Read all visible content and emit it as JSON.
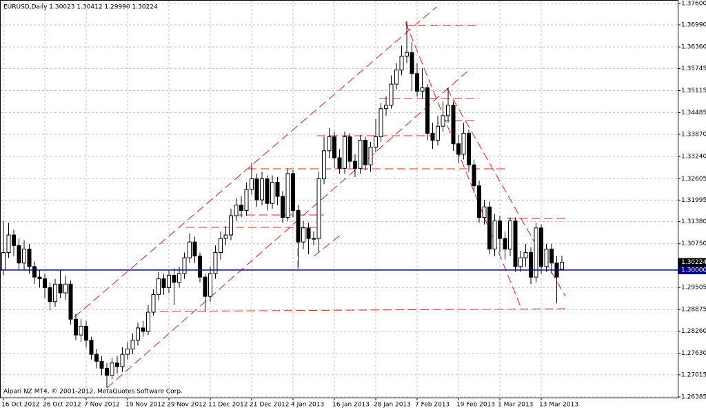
{
  "chart_data": {
    "type": "candlestick",
    "title": "EURUSD,Daily  1.30023 1.30412 1.29990 1.30224",
    "footer": "Alpari NZ MT4, © 2001-2012, MetaQuotes Software Corp.",
    "categories": [
      "16 Oct 2012",
      null,
      null,
      null,
      null,
      null,
      null,
      null,
      "26 Oct 2012",
      null,
      null,
      null,
      null,
      null,
      null,
      null,
      "7 Nov 2012",
      null,
      null,
      null,
      null,
      null,
      null,
      null,
      "19 Nov 2012",
      null,
      null,
      null,
      null,
      null,
      null,
      null,
      "29 Nov 2012",
      null,
      null,
      null,
      null,
      null,
      null,
      null,
      "11 Dec 2012",
      null,
      null,
      null,
      null,
      null,
      null,
      null,
      "21 Dec 2012",
      null,
      null,
      null,
      null,
      null,
      null,
      null,
      "4 Jan 2013",
      null,
      null,
      null,
      null,
      null,
      null,
      null,
      "16 Jan 2013",
      null,
      null,
      null,
      null,
      null,
      null,
      null,
      "28 Jan 2013",
      null,
      null,
      null,
      null,
      null,
      null,
      null,
      "7 Feb 2013",
      null,
      null,
      null,
      null,
      null,
      null,
      null,
      "19 Feb 2013",
      null,
      null,
      null,
      null,
      null,
      null,
      null,
      "1 Mar 2013",
      null,
      null,
      null,
      null,
      null,
      null,
      null,
      "13 Mar 2013",
      null,
      null,
      null,
      null
    ],
    "open": [
      1.3,
      1.305,
      1.31,
      1.307,
      1.302,
      1.306,
      1.301,
      1.298,
      1.2975,
      1.295,
      1.291,
      1.296,
      1.2935,
      1.296,
      1.286,
      1.2815,
      1.284,
      1.28,
      1.276,
      1.274,
      1.272,
      1.27,
      1.2735,
      1.2725,
      1.276,
      1.2775,
      1.28,
      1.2835,
      1.2825,
      1.288,
      1.293,
      1.2975,
      1.295,
      1.2985,
      1.2965,
      1.299,
      1.3035,
      1.308,
      1.304,
      1.298,
      1.2925,
      1.299,
      1.305,
      1.309,
      1.31,
      1.3155,
      1.3185,
      1.317,
      1.323,
      1.326,
      1.32,
      1.326,
      1.319,
      1.325,
      1.321,
      1.315,
      1.3275,
      1.317,
      1.308,
      1.312,
      1.309,
      1.309,
      1.326,
      1.334,
      1.338,
      1.332,
      1.329,
      1.338,
      1.331,
      1.329,
      1.337,
      1.33,
      1.335,
      1.338,
      1.346,
      1.347,
      1.353,
      1.357,
      1.361,
      1.362,
      1.356,
      1.351,
      1.352,
      1.339,
      1.337,
      1.341,
      1.344,
      1.347,
      1.336,
      1.333,
      1.339,
      1.33,
      1.324,
      1.315,
      1.318,
      1.306,
      1.314,
      1.309,
      1.306,
      1.314,
      1.301,
      1.3035,
      1.305,
      1.298,
      1.312,
      1.301,
      1.306,
      1.302,
      1.30023
    ],
    "high": [
      1.314,
      1.3135,
      1.3115,
      1.309,
      1.3085,
      1.3075,
      1.3025,
      1.3,
      1.299,
      1.2965,
      1.2975,
      1.3,
      1.2985,
      1.297,
      1.2875,
      1.286,
      1.2855,
      1.281,
      1.2775,
      1.2755,
      1.2735,
      1.275,
      1.2755,
      1.278,
      1.2795,
      1.282,
      1.285,
      1.2855,
      1.29,
      1.2945,
      1.2995,
      1.299,
      1.3,
      1.3005,
      1.301,
      1.305,
      1.3105,
      1.3095,
      1.305,
      1.299,
      1.301,
      1.307,
      1.311,
      1.3125,
      1.3175,
      1.3205,
      1.321,
      1.325,
      1.3305,
      1.3275,
      1.328,
      1.327,
      1.327,
      1.3265,
      1.3225,
      1.329,
      1.3285,
      1.3185,
      1.314,
      1.3135,
      1.311,
      1.328,
      1.338,
      1.3405,
      1.3395,
      1.3345,
      1.3395,
      1.339,
      1.333,
      1.3385,
      1.338,
      1.3365,
      1.343,
      1.3475,
      1.3495,
      1.3555,
      1.359,
      1.364,
      1.371,
      1.365,
      1.359,
      1.3575,
      1.353,
      1.342,
      1.344,
      1.348,
      1.352,
      1.348,
      1.3385,
      1.342,
      1.34,
      1.3315,
      1.3255,
      1.32,
      1.3195,
      1.316,
      1.3155,
      1.311,
      1.315,
      1.315,
      1.3055,
      1.3075,
      1.3065,
      1.3135,
      1.313,
      1.3075,
      1.3075,
      1.304,
      1.30412
    ],
    "low": [
      1.2985,
      1.3035,
      1.304,
      1.3,
      1.3,
      1.299,
      1.296,
      1.295,
      1.292,
      1.2885,
      1.2895,
      1.292,
      1.2915,
      1.2845,
      1.28,
      1.2795,
      1.278,
      1.2745,
      1.272,
      1.27,
      1.2665,
      1.269,
      1.2705,
      1.271,
      1.2745,
      1.276,
      1.2785,
      1.281,
      1.2815,
      1.287,
      1.2915,
      1.293,
      1.2935,
      1.29,
      1.295,
      1.2975,
      1.302,
      1.302,
      1.2965,
      1.288,
      1.291,
      1.2975,
      1.303,
      1.307,
      1.3085,
      1.314,
      1.315,
      1.3155,
      1.3215,
      1.318,
      1.3185,
      1.317,
      1.3175,
      1.3185,
      1.3135,
      1.314,
      1.315,
      1.301,
      1.306,
      1.3045,
      1.307,
      1.305,
      1.3245,
      1.332,
      1.329,
      1.3275,
      1.3275,
      1.329,
      1.3265,
      1.3275,
      1.3285,
      1.328,
      1.3335,
      1.3365,
      1.344,
      1.346,
      1.3515,
      1.3555,
      1.359,
      1.351,
      1.3495,
      1.349,
      1.337,
      1.3345,
      1.3355,
      1.3395,
      1.342,
      1.334,
      1.3305,
      1.3315,
      1.328,
      1.322,
      1.3135,
      1.313,
      1.3045,
      1.304,
      1.305,
      1.303,
      1.304,
      1.2995,
      1.2995,
      1.301,
      1.296,
      1.2965,
      1.299,
      1.2995,
      1.299,
      1.2905,
      1.2999
    ],
    "close": [
      1.305,
      1.31,
      1.307,
      1.302,
      1.306,
      1.301,
      1.298,
      1.2975,
      1.295,
      1.291,
      1.296,
      1.2935,
      1.296,
      1.286,
      1.2815,
      1.284,
      1.28,
      1.276,
      1.274,
      1.272,
      1.27,
      1.2735,
      1.2725,
      1.276,
      1.2775,
      1.28,
      1.2835,
      1.2825,
      1.288,
      1.293,
      1.2975,
      1.295,
      1.2985,
      1.2965,
      1.299,
      1.3035,
      1.308,
      1.304,
      1.298,
      1.2925,
      1.299,
      1.305,
      1.309,
      1.31,
      1.3155,
      1.3185,
      1.317,
      1.323,
      1.326,
      1.32,
      1.326,
      1.319,
      1.325,
      1.321,
      1.315,
      1.3275,
      1.317,
      1.308,
      1.312,
      1.309,
      1.309,
      1.326,
      1.334,
      1.338,
      1.332,
      1.329,
      1.338,
      1.331,
      1.329,
      1.337,
      1.33,
      1.335,
      1.338,
      1.346,
      1.347,
      1.353,
      1.357,
      1.361,
      1.362,
      1.356,
      1.351,
      1.352,
      1.339,
      1.337,
      1.341,
      1.344,
      1.347,
      1.336,
      1.333,
      1.339,
      1.33,
      1.324,
      1.315,
      1.318,
      1.306,
      1.314,
      1.309,
      1.306,
      1.314,
      1.301,
      1.3035,
      1.305,
      1.298,
      1.312,
      1.301,
      1.306,
      1.302,
      1.298,
      1.30224
    ],
    "ylim": [
      1.26365,
      1.37698
    ],
    "yticks": [
      {
        "value": 1.376,
        "label": "1.37600"
      },
      {
        "value": 1.3699,
        "label": "1.36990"
      },
      {
        "value": 1.3636,
        "label": "1.36360"
      },
      {
        "value": 1.35745,
        "label": "1.35745"
      },
      {
        "value": 1.35115,
        "label": "1.35115"
      },
      {
        "value": 1.34485,
        "label": "1.34485"
      },
      {
        "value": 1.3387,
        "label": "1.33870"
      },
      {
        "value": 1.3324,
        "label": "1.33240"
      },
      {
        "value": 1.32605,
        "label": "1.32605"
      },
      {
        "value": 1.31995,
        "label": "1.31995"
      },
      {
        "value": 1.3138,
        "label": "1.31380"
      },
      {
        "value": 1.3075,
        "label": "1.30750"
      },
      {
        "value": 1.29505,
        "label": "1.29505"
      },
      {
        "value": 1.28875,
        "label": "1.28875"
      },
      {
        "value": 1.2826,
        "label": "1.28260"
      },
      {
        "value": 1.2763,
        "label": "1.27630"
      },
      {
        "value": 1.27015,
        "label": "1.27015"
      },
      {
        "value": 1.26385,
        "label": "1.26385"
      }
    ],
    "hline": {
      "value": 1.3,
      "label": "1.30000",
      "color": "#000080"
    },
    "last_price": {
      "value": 1.30224,
      "label": "1.30224"
    },
    "grid": true
  }
}
